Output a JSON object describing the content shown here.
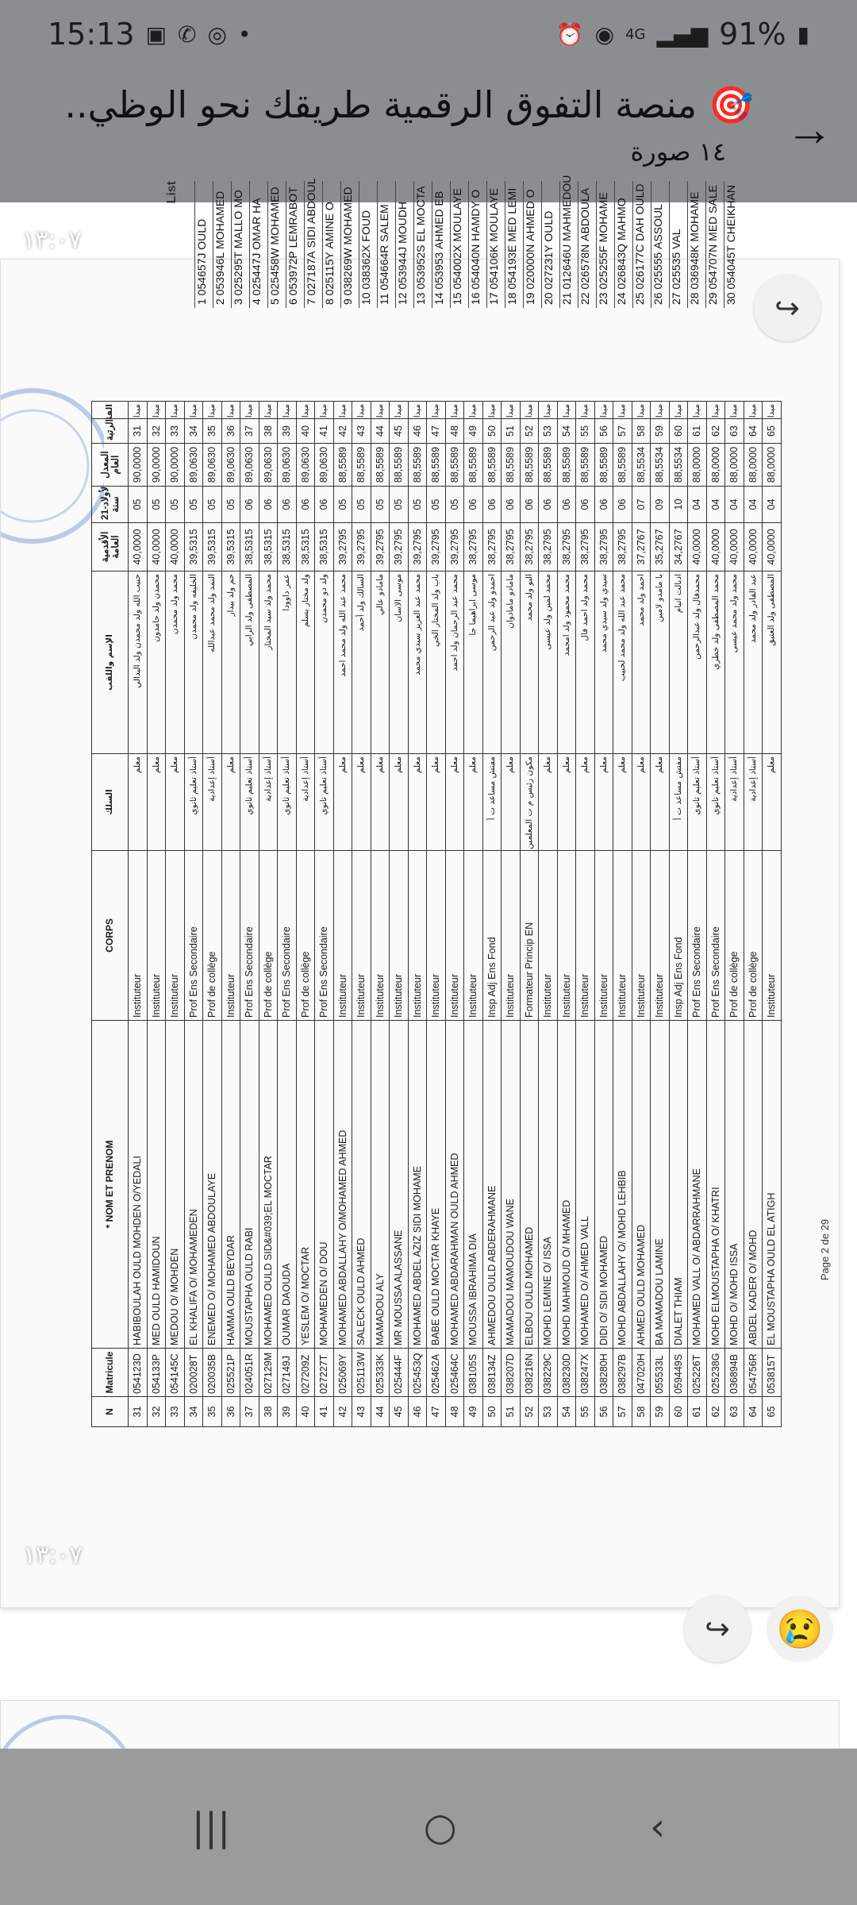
{
  "status_bar": {
    "time": "15:13",
    "battery": "91%",
    "network": "4G",
    "icons": [
      "gallery-icon",
      "whatsapp-icon",
      "hotspot-icon",
      "alarm-icon",
      "wifi-call-icon",
      "signal-icon"
    ]
  },
  "header": {
    "title": "🎯 منصة التفوق الرقمية طريقك نحو الوظي..",
    "subtitle": "١٤ صورة",
    "back_icon": "arrow-icon"
  },
  "previous_page": {
    "label": "List",
    "columns": [
      "N",
      "Matricule"
    ],
    "matricules": [
      "054657J",
      "053946L",
      "025295T",
      "025447J",
      "025458W",
      "053972P",
      "027187A",
      "025115Y",
      "038269W",
      "038362X",
      "054664R",
      "053944J",
      "053952S",
      "053953",
      "054002X",
      "054040N",
      "054106K",
      "054193E",
      "020000N",
      "027231Y",
      "012646U",
      "026578N",
      "025255F",
      "026843Q",
      "026177C",
      "025555",
      "025535",
      "036948K",
      "054707N",
      "054045T"
    ],
    "names": [
      "OULD",
      "MOHAMED",
      "MALLO MO",
      "OMAR HA",
      "MOHAMED",
      "LEMRABOT",
      "SIDI ABDOUL",
      "AMINE O",
      "MOHAMED",
      "FOUD",
      "SALEM",
      "MOUDH",
      "EL MOCTA",
      "AHMED EB",
      "MOULAYE",
      "HAMDY O",
      "MOULAYE",
      "MED LEMI",
      "AHMED O",
      "OULD",
      "MAHMEDOU",
      "ABDOULA",
      "MOHAME",
      "MAHMO",
      "DAH OULD",
      "ASSOUL",
      "VAL",
      "MOHAME",
      "MED SALE",
      "CHEIKHAN"
    ]
  },
  "messages": [
    {
      "time": "١٣:٠٧"
    },
    {
      "time": "١٣:٠٧"
    }
  ],
  "reaction": "😢",
  "forward_icon": "forward-icon",
  "document": {
    "footer": "Page 2 de 29",
    "headers": [
      "N",
      "Matricule",
      "* NOM ET PRENOM",
      "CORPS",
      "السلك",
      "الإسم واللقب",
      "الأقدمية العامة",
      "الأولاد-21 سنة",
      "المعدل العام",
      "الرتبة",
      "الفئة"
    ],
    "rows": [
      [
        "31",
        "054123D",
        "HABIBOULAH OULD MOHDEN O/YEDALI",
        "Instituteur",
        "معلم",
        "حبيب الله ولد محمدن ولد اليدالي",
        "40,0000",
        "05",
        "90,0000",
        "31",
        "ميداني"
      ],
      [
        "32",
        "054133P",
        "MED OULD HAMIDOUN",
        "Instituteur",
        "معلم",
        "محمدن ولد حامدون",
        "40,0000",
        "05",
        "90,0000",
        "32",
        "ميداني"
      ],
      [
        "33",
        "054145C",
        "MEDOU O/ MOHDEN",
        "Instituteur",
        "معلم",
        "محمد ولد محمدن",
        "40,0000",
        "05",
        "90,0000",
        "33",
        "ميداني"
      ],
      [
        "34",
        "020028T",
        "EL KHALIFA O/ MOHAMEDEN",
        "Prof Ens Secondaire",
        "أستاذ تعليم ثانوي",
        "الخليفه ولد محمدن",
        "39,5315",
        "05",
        "89,0630",
        "34",
        "ميداني"
      ],
      [
        "35",
        "020035B",
        "ENEMED O/ MOHAMED ABDOULAYE",
        "Prof de collège",
        "أستاذ إعدادية",
        "النمد ولد محمد عبدالله",
        "39,5315",
        "05",
        "89,0630",
        "35",
        "ميداني"
      ],
      [
        "36",
        "025521P",
        "HAMMA OULD BEYDAR",
        "Instituteur",
        "معلم",
        "حم ولد بيدار",
        "39,5315",
        "05",
        "89,0630",
        "36",
        "ميداني"
      ],
      [
        "37",
        "024051R",
        "MOUSTAPHA OULD RABI",
        "Prof Ens Secondaire",
        "أستاذ تعليم ثانوي",
        "المصطفى ولد الرابي",
        "38,5315",
        "06",
        "89,0630",
        "37",
        "ميداني"
      ],
      [
        "38",
        "027129M",
        "MOHAMED OULD SID&#039;EL MOCTAR",
        "Prof de collège",
        "أستاذ إعدادية",
        "محمد ولد سيد المختار",
        "38,5315",
        "06",
        "89,0630",
        "38",
        "ميداني"
      ],
      [
        "39",
        "027149J",
        "OUMAR DAOUDA",
        "Prof Ens Secondaire",
        "أستاذ تعليم ثانوي",
        "عمر داوودا",
        "38,5315",
        "06",
        "89,0630",
        "39",
        "ميداني"
      ],
      [
        "40",
        "027209Z",
        "YESLEM O/ MOCTAR",
        "Prof de collège",
        "أستاذ إعدادية",
        "ولد مختار يسلم",
        "38,5315",
        "06",
        "89,0630",
        "40",
        "ميداني"
      ],
      [
        "41",
        "027227T",
        "MOHAMEDEN O/ DOU",
        "Prof Ens Secondaire",
        "أستاذ تعليم ثانوي",
        "ولد دو محمدن",
        "38,5315",
        "06",
        "89,0630",
        "41",
        "ميداني"
      ],
      [
        "42",
        "025069Y",
        "MOHAMED ABDALLAHY O/MOHAMED AHMED",
        "Instituteur",
        "معلم",
        "محمد عبد الله ولد محمد احمد",
        "39,2795",
        "05",
        "88,5589",
        "42",
        "ميداني"
      ],
      [
        "43",
        "025113W",
        "SALECK OULD AHMED",
        "Instituteur",
        "معلم",
        "السالك ولد أحمد",
        "39,2795",
        "05",
        "88,5589",
        "43",
        "ميداني"
      ],
      [
        "44",
        "025333K",
        "MAMADOU ALY",
        "Instituteur",
        "معلم",
        "مامادو عالي",
        "39,2795",
        "05",
        "88,5589",
        "44",
        "ميداني"
      ],
      [
        "45",
        "025444F",
        "MR MOUSSA ALASSANE",
        "Instituteur",
        "معلم",
        "موسى الاسان",
        "39,2795",
        "05",
        "88,5589",
        "45",
        "ميداني"
      ],
      [
        "46",
        "025453Q",
        "MOHAMED ABDEL AZIZ SIDI MOHAME",
        "Instituteur",
        "معلم",
        "محمد عبد العزيز سيدي محمد",
        "39,2795",
        "05",
        "88,5589",
        "46",
        "ميداني"
      ],
      [
        "47",
        "025462A",
        "BABE OULD MOCTAR KHAYE",
        "Instituteur",
        "معلم",
        "باب ولد المختار الخي",
        "39,2795",
        "05",
        "88,5589",
        "47",
        "ميداني"
      ],
      [
        "48",
        "025464C",
        "MOHAMED ABDARAHMAN OULD AHMED",
        "Instituteur",
        "معلم",
        "محمد عبد الرحمان ولد احمد",
        "39,2795",
        "05",
        "88,5589",
        "48",
        "ميداني"
      ],
      [
        "49",
        "038105S",
        "MOUSSA IBRAHIMA DIA",
        "Instituteur",
        "معلم",
        "موسى ابراهيما جا",
        "38,2795",
        "06",
        "88,5589",
        "49",
        "ميداني"
      ],
      [
        "50",
        "038134Z",
        "AHMEDOU OULD ABDERAHMANE",
        "Insp Adj Ens Fond",
        "مفتش مساعد ت أ",
        "احمدو ولد عبد الرحمن",
        "38,2795",
        "06",
        "88,5589",
        "50",
        "ميداني"
      ],
      [
        "51",
        "038207D",
        "MAMADOU MAMOUDOU WANE",
        "Instituteur",
        "معلم",
        "مامادو مامادوان",
        "38,2795",
        "06",
        "88,5589",
        "51",
        "ميداني"
      ],
      [
        "52",
        "038216N",
        "ELBOU OULD MOHAMED",
        "Formateur Princip EN",
        "مكون رئيس م ت المعلمين",
        "البو ولد محمد",
        "38,2795",
        "06",
        "88,5589",
        "52",
        "ميداني"
      ],
      [
        "53",
        "038229C",
        "MOHD LEMINE O/ ISSA",
        "Instituteur",
        "معلم",
        "محمد لمين ولد عيسى",
        "38,2795",
        "06",
        "88,5589",
        "53",
        "ميداني"
      ],
      [
        "54",
        "038230D",
        "MOHD MAHMOUD O/ MHAMED",
        "Instituteur",
        "معلم",
        "محمد محمود ولد امحمد",
        "38,2795",
        "06",
        "88,5589",
        "54",
        "ميداني"
      ],
      [
        "55",
        "038247X",
        "MOHAMED O/ AHMED VALL",
        "Instituteur",
        "معلم",
        "محمد ولد احمد فال",
        "38,2795",
        "06",
        "88,5589",
        "55",
        "ميداني"
      ],
      [
        "56",
        "038280H",
        "DIDI O/ SIDI MOHAMED",
        "Instituteur",
        "معلم",
        "سيدي ولد سيدي محمد",
        "38,2795",
        "06",
        "88,5589",
        "56",
        "ميداني"
      ],
      [
        "57",
        "038297B",
        "MOHD ABDALLAHY O/ MOHD LEHBIB",
        "Instituteur",
        "معلم",
        "محمد عبد الله ولد محمد لحبيب",
        "38,2795",
        "06",
        "88,5589",
        "57",
        "ميداني"
      ],
      [
        "58",
        "047020H",
        "AHMED OULD MOHAMED",
        "Instituteur",
        "معلم",
        "احمد ولد محمد",
        "37,2767",
        "07",
        "88,5534",
        "58",
        "ميداني"
      ],
      [
        "59",
        "055533L",
        "BA MAMADOU LAMINE",
        "Instituteur",
        "معلم",
        "با مامدو لامين",
        "35,2767",
        "09",
        "88,5534",
        "59",
        "ميداني"
      ],
      [
        "60",
        "059449S",
        "DIALET THIAM",
        "Insp Adj Ens Fond",
        "مفتش مساعد ت أ",
        "ادبالت اتيام",
        "34,2767",
        "10",
        "88,5534",
        "60",
        "ميداني"
      ],
      [
        "61",
        "025226T",
        "MOHAMED VALL O/ ABDARRAHMANE",
        "Prof Ens Secondaire",
        "أستاذ تعليم ثانوي",
        "محمدفال ولد عبدالرحمن",
        "40,0000",
        "04",
        "88,0000",
        "61",
        "ميداني"
      ],
      [
        "62",
        "025238G",
        "MOHD ELMOUSTAPHA O/ KHATRI",
        "Prof Ens Secondaire",
        "أستاذ تعليم ثانوي",
        "محمد المصطفى ولد خطري",
        "40,0000",
        "04",
        "88,0000",
        "62",
        "ميداني"
      ],
      [
        "63",
        "036894B",
        "MOHD O/ MOHD ISSA",
        "Prof de collège",
        "أستاذ إعدادية",
        "محمد ولد محمد عيسى",
        "40,0000",
        "04",
        "88,0000",
        "63",
        "ميداني"
      ],
      [
        "64",
        "054756R",
        "ABDEL KADER O/ MOHD",
        "Prof de collège",
        "أستاذ إعدادية",
        "عبد القادر ولد محمد",
        "40,0000",
        "04",
        "88,0000",
        "64",
        "ميداني"
      ],
      [
        "65",
        "053815T",
        "EL MOUSTAPHA OULD EL ATIGH",
        "Instituteur",
        "معلم",
        "المصطفى ولد العتيق",
        "40,0000",
        "04",
        "88,0000",
        "65",
        "ميداني"
      ]
    ]
  },
  "nav": {
    "recents": "|||",
    "home": "○",
    "back": "‹"
  }
}
